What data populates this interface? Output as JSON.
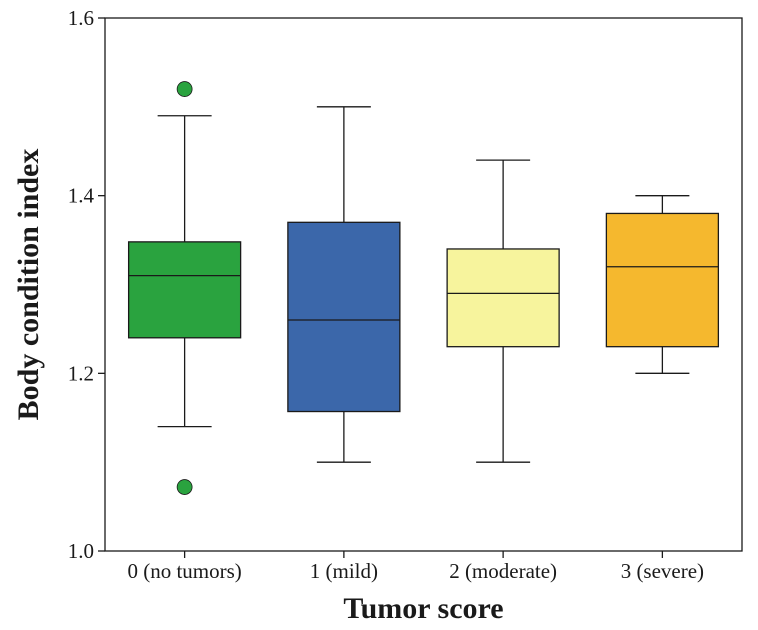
{
  "chart_data": {
    "type": "box",
    "title": "",
    "xlabel": "Tumor score",
    "ylabel": "Body condition index",
    "ylim": [
      1.0,
      1.6
    ],
    "yticks": [
      1.0,
      1.2,
      1.4,
      1.6
    ],
    "ytick_labels": [
      "1.0",
      "1.2",
      "1.4",
      "1.6"
    ],
    "grid": false,
    "legend": null,
    "groups": [
      {
        "label": "0 (no tumors)",
        "color": "#2aa33f",
        "whisker_low": 1.14,
        "q1": 1.24,
        "median": 1.31,
        "q3": 1.348,
        "whisker_high": 1.49,
        "outliers": [
          1.52,
          1.072
        ]
      },
      {
        "label": "1 (mild)",
        "color": "#3b67aa",
        "whisker_low": 1.1,
        "q1": 1.157,
        "median": 1.26,
        "q3": 1.37,
        "whisker_high": 1.5,
        "outliers": []
      },
      {
        "label": "2 (moderate)",
        "color": "#f7f49d",
        "whisker_low": 1.1,
        "q1": 1.23,
        "median": 1.29,
        "q3": 1.34,
        "whisker_high": 1.44,
        "outliers": []
      },
      {
        "label": "3 (severe)",
        "color": "#f5b82e",
        "whisker_low": 1.2,
        "q1": 1.23,
        "median": 1.32,
        "q3": 1.38,
        "whisker_high": 1.4,
        "outliers": []
      }
    ]
  }
}
